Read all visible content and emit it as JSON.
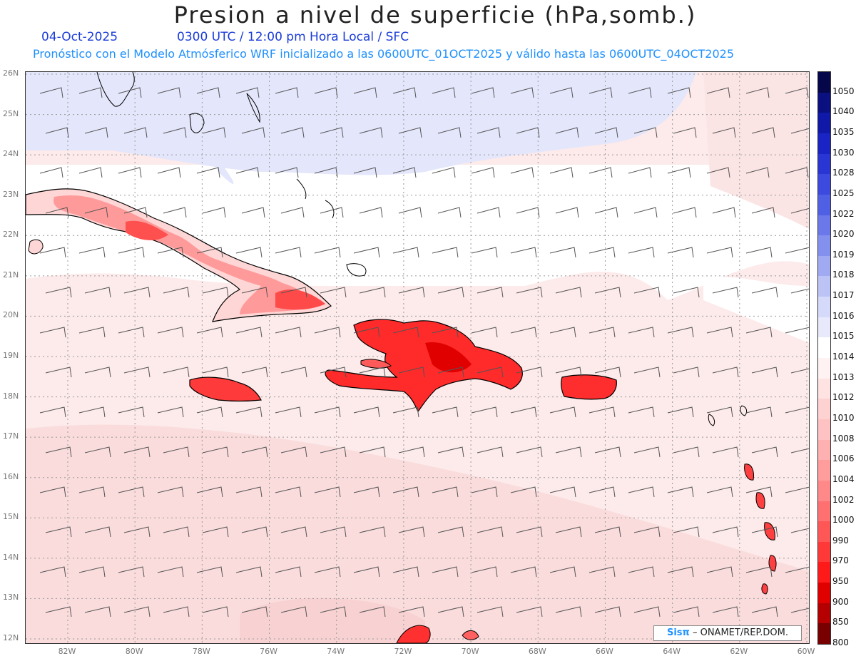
{
  "header": {
    "title": "Presion a nivel de superficie (hPa,somb.)",
    "date": "04-Oct-2025",
    "time_info": "0300 UTC / 12:00 pm Hora Local / SFC",
    "forecast_info": "Pronóstico con el Modelo Atmósferico WRF inicializado a las 0600UTC_01OCT2025 y válido hasta las  0600UTC_04OCT2025"
  },
  "map": {
    "lat_labels": [
      "26N",
      "25N",
      "24N",
      "23N",
      "22N",
      "21N",
      "20N",
      "19N",
      "18N",
      "17N",
      "16N",
      "15N",
      "14N",
      "13N",
      "12N"
    ],
    "lon_labels": [
      "82W",
      "80W",
      "78W",
      "76W",
      "74W",
      "72W",
      "70W",
      "68W",
      "66W",
      "64W",
      "62W",
      "60W"
    ],
    "grid": "dotted",
    "wind_barbs": true,
    "region": "Caribe"
  },
  "colorbar": {
    "labels": [
      "1050",
      "1040",
      "1035",
      "1030",
      "1028",
      "1025",
      "1022",
      "1020",
      "1019",
      "1018",
      "1017",
      "1016",
      "1015",
      "1014",
      "1013",
      "1012",
      "1010",
      "1008",
      "1006",
      "1004",
      "1002",
      "1000",
      "990",
      "970",
      "950",
      "900",
      "850",
      "800"
    ],
    "colors": [
      "#06064a",
      "#0b1080",
      "#1018a8",
      "#1a24c4",
      "#2a36d4",
      "#3c4ade",
      "#5060e4",
      "#6a78ea",
      "#8490ee",
      "#a0aaf2",
      "#bcc4f6",
      "#d6dafa",
      "#e8eafc",
      "#ffffff",
      "#fff2f2",
      "#ffe2e2",
      "#ffd2d2",
      "#ffc2c2",
      "#ffb0b0",
      "#ff9c9c",
      "#ff8888",
      "#ff7070",
      "#ff5656",
      "#ff3838",
      "#ff1a1a",
      "#e00000",
      "#b40000",
      "#780000"
    ]
  },
  "credit": {
    "logo": "Sisπ",
    "org": "– ONAMET/REP.DOM."
  }
}
